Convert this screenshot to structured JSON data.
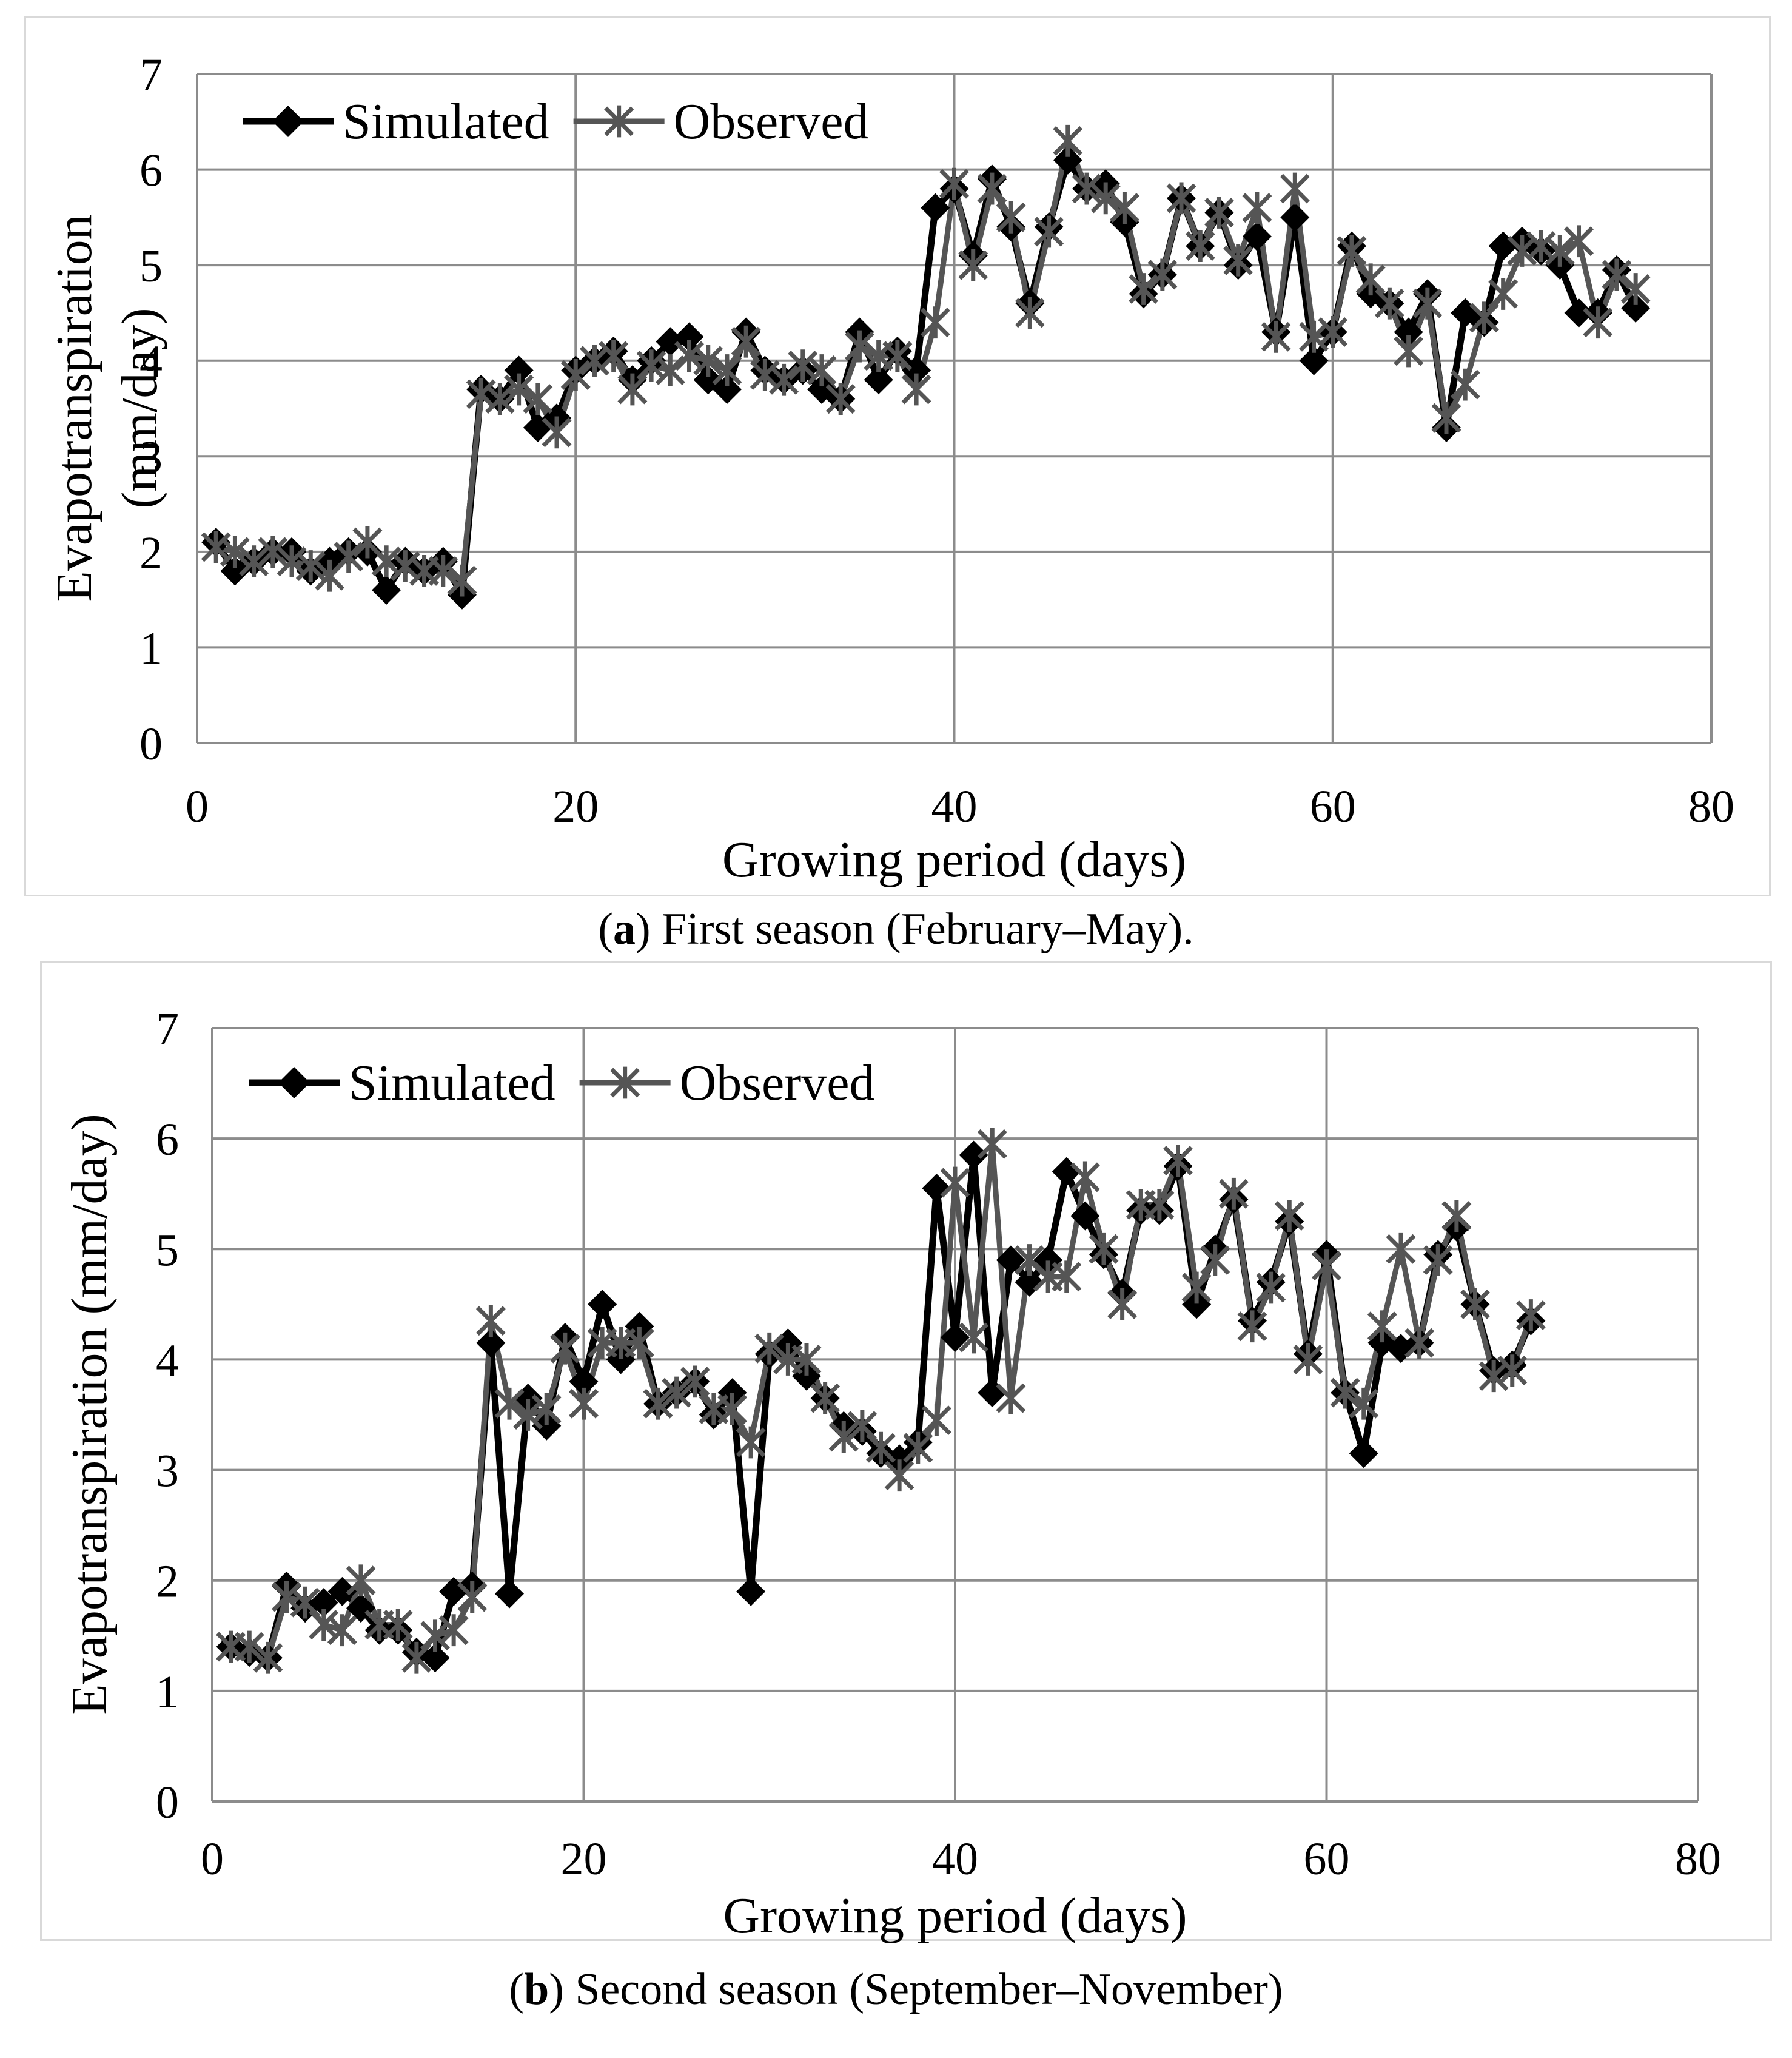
{
  "chart_data": [
    {
      "type": "line",
      "panel_label": "a",
      "caption": "First season (February–May).",
      "xlabel": "Growing period (days)",
      "ylabel_line1": "Evapotranspiration",
      "ylabel_line2": "(mm/day)",
      "xlim": [
        0,
        80
      ],
      "ylim": [
        0,
        7
      ],
      "xticks": [
        0,
        20,
        40,
        60,
        80
      ],
      "yticks": [
        0,
        1,
        2,
        3,
        4,
        5,
        6,
        7
      ],
      "grid": true,
      "legend_position": "top-left",
      "series": [
        {
          "name": "Simulated",
          "marker": "diamond",
          "color": "#000000",
          "x": [
            1,
            2,
            3,
            4,
            5,
            6,
            7,
            8,
            9,
            10,
            11,
            12,
            13,
            14,
            15,
            16,
            17,
            18,
            19,
            20,
            21,
            22,
            23,
            24,
            25,
            26,
            27,
            28,
            29,
            30,
            31,
            32,
            33,
            34,
            35,
            36,
            37,
            38,
            39,
            40,
            41,
            42,
            43,
            44,
            45,
            46,
            47,
            48,
            49,
            50,
            51,
            52,
            53,
            54,
            55,
            56,
            57,
            58,
            59,
            60,
            61,
            62,
            63,
            64,
            65,
            66,
            67,
            68,
            69,
            70,
            71,
            72,
            73,
            74,
            75,
            76
          ],
          "values": [
            2.1,
            1.8,
            1.9,
            2.0,
            2.0,
            1.8,
            1.9,
            2.0,
            2.0,
            1.6,
            1.9,
            1.8,
            1.9,
            1.55,
            3.7,
            3.6,
            3.9,
            3.3,
            3.4,
            3.9,
            4.0,
            4.1,
            3.8,
            4.0,
            4.2,
            4.25,
            3.8,
            3.7,
            4.3,
            3.9,
            3.8,
            3.9,
            3.7,
            3.6,
            4.3,
            3.8,
            4.1,
            3.9,
            5.6,
            5.8,
            5.1,
            5.9,
            5.4,
            4.6,
            5.4,
            6.1,
            5.8,
            5.85,
            5.45,
            4.7,
            4.9,
            5.7,
            5.2,
            5.55,
            5.0,
            5.3,
            4.3,
            5.5,
            4.0,
            4.3,
            5.2,
            4.7,
            4.6,
            4.3,
            4.7,
            3.3,
            4.5,
            4.4,
            5.2,
            5.25,
            5.15,
            5.0,
            4.5,
            4.5,
            4.95,
            4.55
          ]
        },
        {
          "name": "Observed",
          "marker": "x-star",
          "color": "#555555",
          "x": [
            1,
            2,
            3,
            4,
            5,
            6,
            7,
            8,
            9,
            10,
            11,
            12,
            13,
            14,
            15,
            16,
            17,
            18,
            19,
            20,
            21,
            22,
            23,
            24,
            25,
            26,
            27,
            28,
            29,
            30,
            31,
            32,
            33,
            34,
            35,
            36,
            37,
            38,
            39,
            40,
            41,
            42,
            43,
            44,
            45,
            46,
            47,
            48,
            49,
            50,
            51,
            52,
            53,
            54,
            55,
            56,
            57,
            58,
            59,
            60,
            61,
            62,
            63,
            64,
            65,
            66,
            67,
            68,
            69,
            70,
            71,
            72,
            73,
            74,
            75,
            76
          ],
          "values": [
            2.05,
            2.0,
            1.9,
            2.0,
            1.9,
            1.85,
            1.75,
            1.95,
            2.1,
            1.9,
            1.85,
            1.8,
            1.8,
            1.7,
            3.65,
            3.6,
            3.7,
            3.6,
            3.25,
            3.85,
            4.0,
            4.05,
            3.7,
            3.95,
            3.9,
            4.05,
            4.0,
            3.9,
            4.2,
            3.85,
            3.8,
            3.95,
            3.9,
            3.6,
            4.15,
            4.05,
            4.05,
            3.7,
            4.4,
            5.85,
            5.0,
            5.8,
            5.5,
            4.5,
            5.35,
            6.3,
            5.8,
            5.7,
            5.6,
            4.75,
            4.9,
            5.7,
            5.2,
            5.55,
            5.05,
            5.6,
            4.25,
            5.8,
            4.25,
            4.3,
            5.15,
            4.85,
            4.6,
            4.1,
            4.6,
            3.4,
            3.75,
            4.45,
            4.7,
            5.15,
            5.2,
            5.15,
            5.25,
            4.4,
            4.9,
            4.75
          ]
        }
      ]
    },
    {
      "type": "line",
      "panel_label": "b",
      "caption": "Second season (September–November)",
      "xlabel": "Growing period (days)",
      "ylabel_line1": "Evapotranspiration (mm/day)",
      "ylabel_line2": "",
      "xlim": [
        0,
        80
      ],
      "ylim": [
        0,
        7
      ],
      "xticks": [
        0,
        20,
        40,
        60,
        80
      ],
      "yticks": [
        0,
        1,
        2,
        3,
        4,
        5,
        6,
        7
      ],
      "grid": true,
      "legend_position": "top-left",
      "series": [
        {
          "name": "Simulated",
          "marker": "diamond",
          "color": "#000000",
          "x": [
            1,
            2,
            3,
            4,
            5,
            6,
            7,
            8,
            9,
            10,
            11,
            12,
            13,
            14,
            15,
            16,
            17,
            18,
            19,
            20,
            21,
            22,
            23,
            24,
            25,
            26,
            27,
            28,
            29,
            30,
            31,
            32,
            33,
            34,
            35,
            36,
            37,
            38,
            39,
            40,
            41,
            42,
            43,
            44,
            45,
            46,
            47,
            48,
            49,
            50,
            51,
            52,
            53,
            54,
            55,
            56,
            57,
            58,
            59,
            60,
            61,
            62,
            63,
            64,
            65,
            66,
            67,
            68,
            69,
            70,
            71
          ],
          "values": [
            1.4,
            1.35,
            1.3,
            1.95,
            1.75,
            1.8,
            1.9,
            1.75,
            1.55,
            1.55,
            1.35,
            1.3,
            1.9,
            1.95,
            4.15,
            1.88,
            3.65,
            3.4,
            4.2,
            3.8,
            4.5,
            4.0,
            4.3,
            3.6,
            3.7,
            3.8,
            3.5,
            3.7,
            1.9,
            4.05,
            4.15,
            3.85,
            3.65,
            3.4,
            3.35,
            3.15,
            3.1,
            3.25,
            5.55,
            4.2,
            5.85,
            3.7,
            4.9,
            4.7,
            4.9,
            5.7,
            5.3,
            4.95,
            4.6,
            5.35,
            5.35,
            5.75,
            4.5,
            5.0,
            5.45,
            4.35,
            4.7,
            5.25,
            4.05,
            4.95,
            3.7,
            3.15,
            4.15,
            4.1,
            4.15,
            4.95,
            5.2,
            4.5,
            3.9,
            3.95,
            4.35
          ]
        },
        {
          "name": "Observed",
          "marker": "x-star",
          "color": "#555555",
          "x": [
            1,
            2,
            3,
            4,
            5,
            6,
            7,
            8,
            9,
            10,
            11,
            12,
            13,
            14,
            15,
            16,
            17,
            18,
            19,
            20,
            21,
            22,
            23,
            24,
            25,
            26,
            27,
            28,
            29,
            30,
            31,
            32,
            33,
            34,
            35,
            36,
            37,
            38,
            39,
            40,
            41,
            42,
            43,
            44,
            45,
            46,
            47,
            48,
            49,
            50,
            51,
            52,
            53,
            54,
            55,
            56,
            57,
            58,
            59,
            60,
            61,
            62,
            63,
            64,
            65,
            66,
            67,
            68,
            69,
            70,
            71
          ],
          "values": [
            1.4,
            1.4,
            1.3,
            1.85,
            1.8,
            1.6,
            1.55,
            2.0,
            1.6,
            1.6,
            1.3,
            1.5,
            1.55,
            1.85,
            4.35,
            3.6,
            3.5,
            3.55,
            4.1,
            3.6,
            4.15,
            4.15,
            4.15,
            3.6,
            3.7,
            3.8,
            3.55,
            3.55,
            3.25,
            4.1,
            4.0,
            4.0,
            3.65,
            3.3,
            3.4,
            3.2,
            2.95,
            3.2,
            3.45,
            5.6,
            4.2,
            5.95,
            3.65,
            4.9,
            4.75,
            4.75,
            5.65,
            5.0,
            4.5,
            5.4,
            5.4,
            5.8,
            4.65,
            4.9,
            5.5,
            4.3,
            4.65,
            5.3,
            4.0,
            4.85,
            3.7,
            3.6,
            4.3,
            5.0,
            4.15,
            4.9,
            5.3,
            4.5,
            3.85,
            3.9,
            4.4
          ]
        }
      ]
    }
  ]
}
